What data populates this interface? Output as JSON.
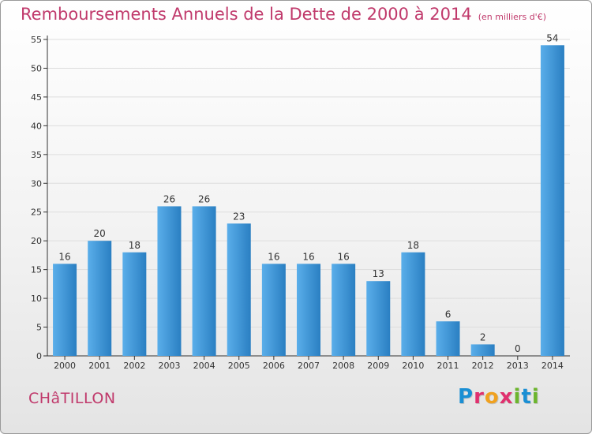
{
  "header": {
    "title": "Remboursements Annuels de la Dette de 2000 à 2014",
    "unit": "(en milliers d'€)"
  },
  "footer": {
    "city": "CHâTILLON",
    "logo_letters": [
      "P",
      "r",
      "o",
      "x",
      "i",
      "t",
      "i"
    ],
    "logo_colors": [
      "#1a8fd4",
      "#e0306e",
      "#f0a11f",
      "#e0306e",
      "#6cb52d",
      "#1a8fd4",
      "#6cb52d"
    ]
  },
  "colors": {
    "title": "#c0396b",
    "bar_top": "#5aaeea",
    "bar_bottom": "#2a7fc2",
    "axis": "#333333",
    "grid": "#dddddd"
  },
  "chart_data": {
    "type": "bar",
    "title": "Remboursements Annuels de la Dette de 2000 à 2014",
    "subtitle": "(en milliers d'€)",
    "categories": [
      "2000",
      "2001",
      "2002",
      "2003",
      "2004",
      "2005",
      "2006",
      "2007",
      "2008",
      "2009",
      "2010",
      "2011",
      "2012",
      "2013",
      "2014"
    ],
    "values": [
      16,
      20,
      18,
      26,
      26,
      23,
      16,
      16,
      16,
      13,
      18,
      6,
      2,
      0,
      54
    ],
    "ylim": [
      0,
      55
    ],
    "yticks": [
      0,
      5,
      10,
      15,
      20,
      25,
      30,
      35,
      40,
      45,
      50,
      55
    ],
    "grid": true,
    "data_labels": true
  }
}
